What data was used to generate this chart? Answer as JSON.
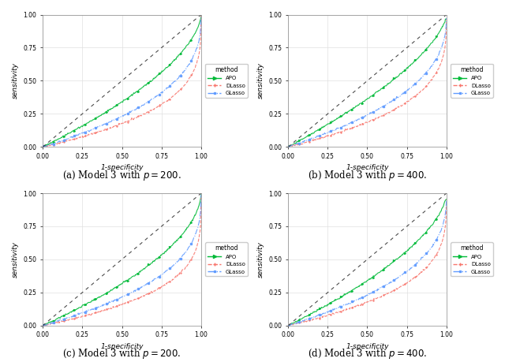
{
  "subplots": [
    {
      "title": "(a) Model 3 with $p = 200$.",
      "xlabel": "1-specificity",
      "ylabel": "sensitivity",
      "xlim": [
        0.0,
        1.0
      ],
      "ylim": [
        0.0,
        1.0
      ],
      "xticks": [
        0.0,
        0.25,
        0.5,
        0.75,
        1.0
      ],
      "yticks": [
        0.0,
        0.25,
        0.5,
        0.75,
        1.0
      ],
      "apo_curve": "convex_fast",
      "dlasso_curve": "convex_faster",
      "glasso_curve": "convex_mid"
    },
    {
      "title": "(b) Model 3 with $p = 400$.",
      "xlabel": "1-specificity",
      "ylabel": "sensitivity",
      "xlim": [
        0.0,
        1.0
      ],
      "ylim": [
        0.0,
        1.0
      ],
      "xticks": [
        0.0,
        0.25,
        0.5,
        0.75,
        1.0
      ],
      "yticks": [
        0.0,
        0.25,
        0.5,
        0.75,
        1.0
      ],
      "apo_curve": "convex_fast",
      "dlasso_curve": "convex_faster",
      "glasso_curve": "convex_mid"
    },
    {
      "title": "(c) Model 3 with $p = 200$.",
      "xlabel": "1-specificity",
      "ylabel": "sensitivity",
      "xlim": [
        0.0,
        1.0
      ],
      "ylim": [
        0.0,
        1.0
      ],
      "xticks": [
        0.0,
        0.25,
        0.5,
        0.75,
        1.0
      ],
      "yticks": [
        0.0,
        0.25,
        0.5,
        0.75,
        1.0
      ],
      "apo_curve": "convex_fast",
      "dlasso_curve": "convex_faster",
      "glasso_curve": "convex_mid"
    },
    {
      "title": "(d) Model 3 with $p = 400$.",
      "xlabel": "1-specificity",
      "ylabel": "sensitivity",
      "xlim": [
        0.0,
        1.0
      ],
      "ylim": [
        0.0,
        1.0
      ],
      "xticks": [
        0.0,
        0.25,
        0.5,
        0.75,
        1.0
      ],
      "yticks": [
        0.0,
        0.25,
        0.5,
        0.75,
        1.0
      ],
      "apo_curve": "convex_fast",
      "dlasso_curve": "convex_faster",
      "glasso_curve": "convex_mid"
    }
  ],
  "colors": {
    "APO": "#00BA38",
    "DLasso": "#F8766D",
    "GLasso": "#619CFF",
    "diagonal": "#000000"
  },
  "legend_title": "method",
  "methods": [
    "APO",
    "DLasso",
    "GLasso"
  ],
  "background_color": "#ffffff",
  "grid_color": "#e0e0e0",
  "title_fontsize": 10,
  "axis_fontsize": 7,
  "tick_fontsize": 6
}
